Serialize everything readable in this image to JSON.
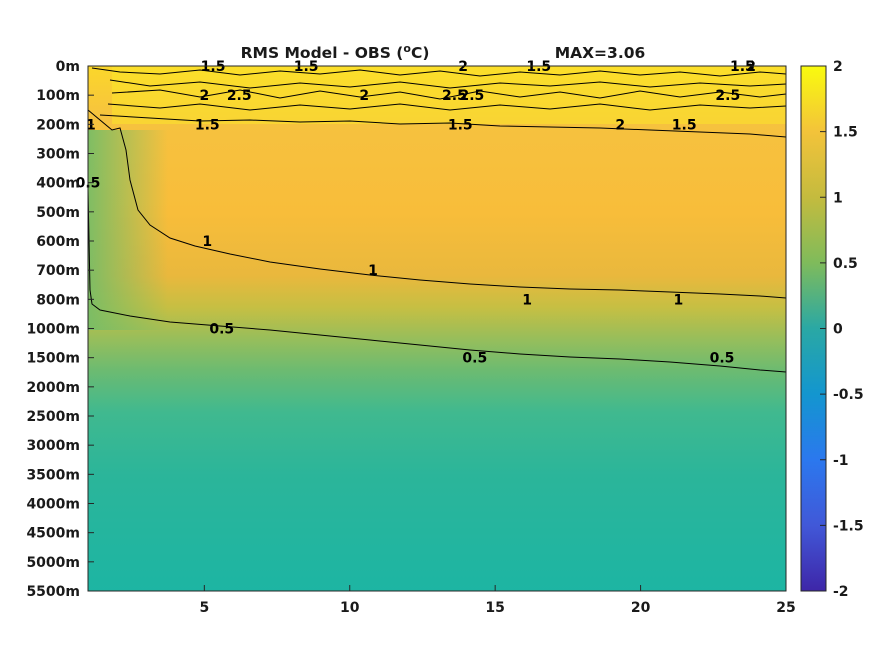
{
  "chart_data": {
    "type": "heatmap",
    "title": "RMS Model - OBS (°C)",
    "title_parts": {
      "main": "RMS Model - OBS (",
      "sup": "o",
      "unit": "C)"
    },
    "annotation": "MAX=3.06",
    "xlim": [
      1,
      25
    ],
    "x_ticks": [
      5,
      10,
      15,
      20,
      25
    ],
    "y_tick_labels": [
      "0m",
      "100m",
      "200m",
      "300m",
      "400m",
      "500m",
      "600m",
      "700m",
      "800m",
      "1000m",
      "1500m",
      "2000m",
      "2500m",
      "3000m",
      "3500m",
      "4000m",
      "4500m",
      "5000m",
      "5500m"
    ],
    "y_axis_reversed": true,
    "colorbar": {
      "range": [
        -2,
        2
      ],
      "ticks": [
        "2",
        "1.5",
        "1",
        "0.5",
        "0",
        "-0.5",
        "-1",
        "-1.5",
        "-2"
      ],
      "colormap": "parula"
    },
    "contour_levels": [
      0.5,
      1,
      1.5,
      2,
      2.5
    ],
    "contour_labels": [
      {
        "text": "1.5",
        "x": 5.3,
        "depth": "0m"
      },
      {
        "text": "1.5",
        "x": 8.5,
        "depth": "0m"
      },
      {
        "text": "1.5",
        "x": 16.5,
        "depth": "0m"
      },
      {
        "text": "1.5",
        "x": 23.5,
        "depth": "0m"
      },
      {
        "text": "2",
        "x": 5.0,
        "depth": "100m"
      },
      {
        "text": "2",
        "x": 13.9,
        "depth": "0m"
      },
      {
        "text": "2",
        "x": 23.8,
        "depth": "0m"
      },
      {
        "text": "2.5",
        "x": 6.2,
        "depth": "100m"
      },
      {
        "text": "2.5",
        "x": 13.6,
        "depth": "100m"
      },
      {
        "text": "2.5",
        "x": 14.2,
        "depth": "100m"
      },
      {
        "text": "2.5",
        "x": 23.0,
        "depth": "100m"
      },
      {
        "text": "2",
        "x": 10.5,
        "depth": "100m"
      },
      {
        "text": "2",
        "x": 19.3,
        "depth": "200m"
      },
      {
        "text": "1.5",
        "x": 5.1,
        "depth": "200m"
      },
      {
        "text": "1.5",
        "x": 13.8,
        "depth": "200m"
      },
      {
        "text": "1.5",
        "x": 21.5,
        "depth": "200m"
      },
      {
        "text": "1",
        "x": 1.1,
        "depth": "200m"
      },
      {
        "text": "0.5",
        "x": 1.0,
        "depth": "400m"
      },
      {
        "text": "1",
        "x": 5.1,
        "depth": "600m"
      },
      {
        "text": "1",
        "x": 10.8,
        "depth": "700m"
      },
      {
        "text": "1",
        "x": 16.1,
        "depth": "800m"
      },
      {
        "text": "1",
        "x": 21.3,
        "depth": "800m"
      },
      {
        "text": "0.5",
        "x": 5.6,
        "depth": "1000m"
      },
      {
        "text": "0.5",
        "x": 14.3,
        "depth": "1500m"
      },
      {
        "text": "0.5",
        "x": 22.8,
        "depth": "1500m"
      }
    ]
  }
}
